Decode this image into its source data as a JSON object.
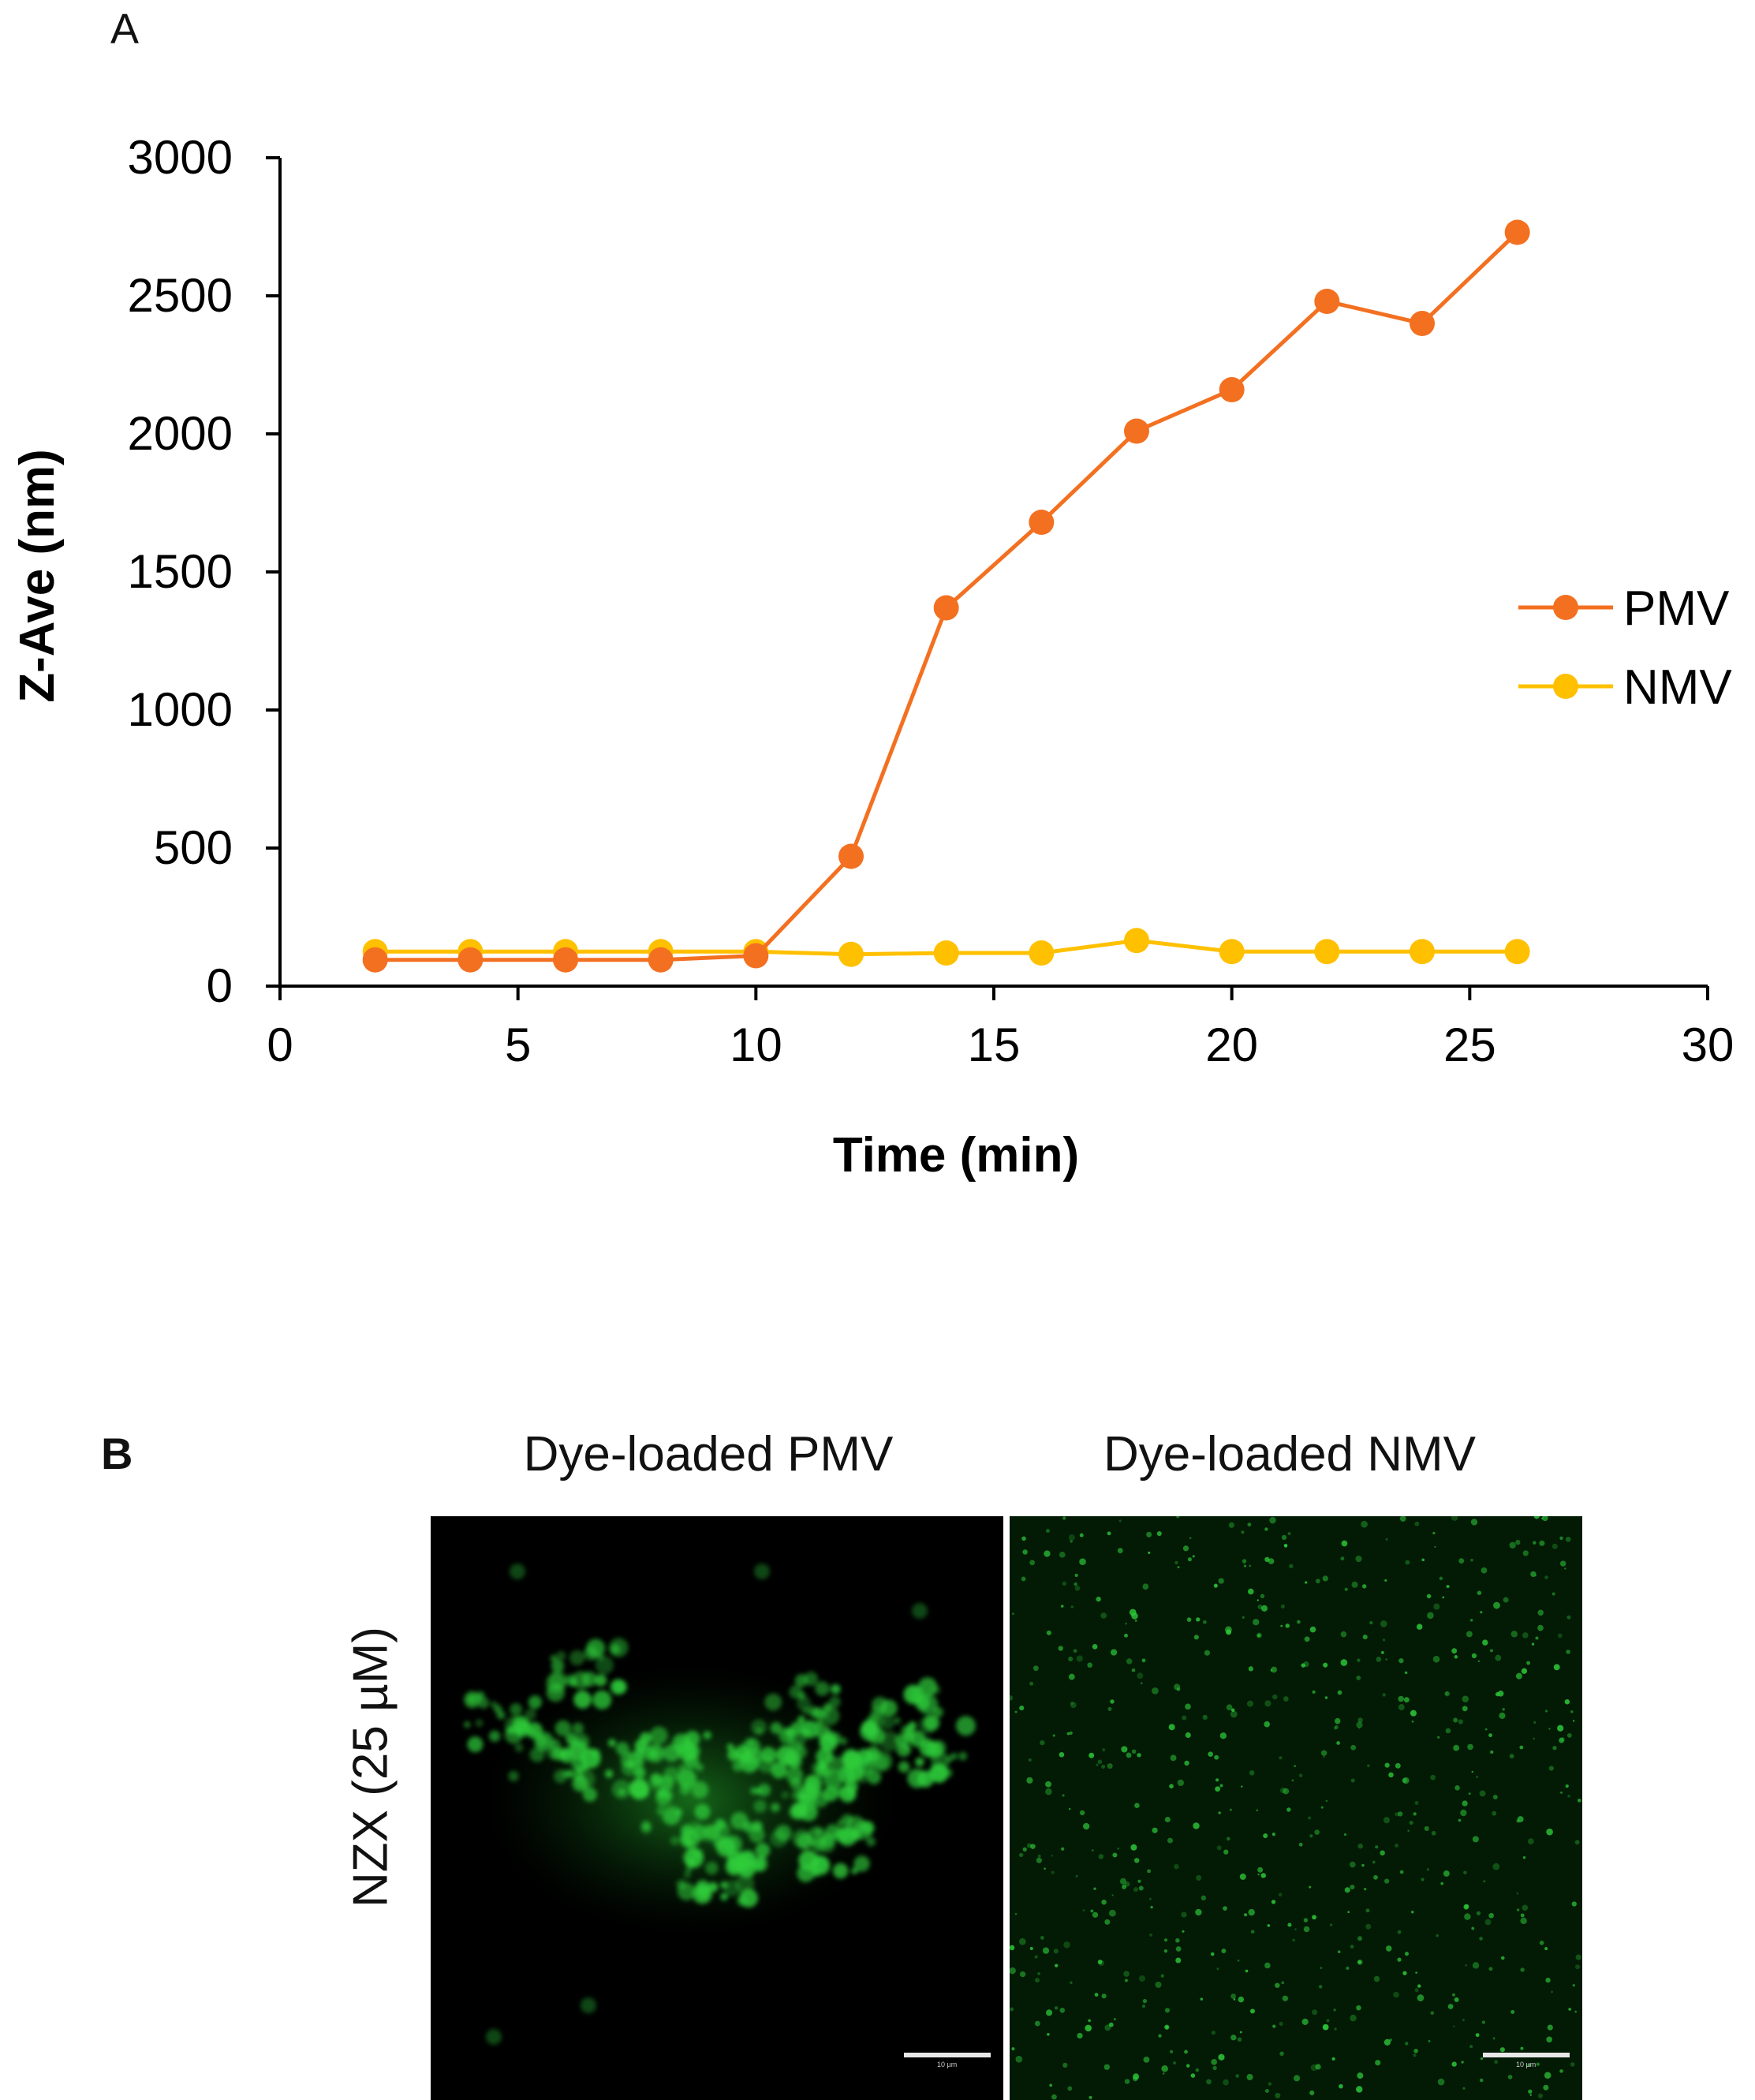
{
  "panel_labels": {
    "a": "A",
    "b": "B"
  },
  "chart_data": {
    "type": "line",
    "title": "",
    "xlabel": "Time (min)",
    "ylabel": "Z-Ave (nm)",
    "xlim": [
      0,
      30
    ],
    "ylim": [
      0,
      3000
    ],
    "xticks": [
      0,
      5,
      10,
      15,
      20,
      25,
      30
    ],
    "yticks": [
      0,
      500,
      1000,
      1500,
      2000,
      2500,
      3000
    ],
    "grid": false,
    "legend_position": "right",
    "x": [
      2,
      4,
      6,
      8,
      10,
      12,
      14,
      16,
      18,
      20,
      22,
      24,
      26
    ],
    "series": [
      {
        "name": "PMV",
        "color": "#F37021",
        "values": [
          95,
          95,
          95,
          95,
          110,
          470,
          1370,
          1680,
          2010,
          2160,
          2480,
          2400,
          2730
        ]
      },
      {
        "name": "NMV",
        "color": "#FFC000",
        "values": [
          125,
          125,
          125,
          125,
          125,
          115,
          120,
          120,
          165,
          125,
          125,
          125,
          125
        ]
      }
    ]
  },
  "panel_b": {
    "column_titles": [
      "Dye-loaded PMV",
      "Dye-loaded NMV"
    ],
    "row_label": "NZX (25 µM)",
    "scale_bar_text": "10 µm",
    "colors": {
      "fluorescence": "#2ECC3A",
      "background": "#000000"
    }
  }
}
